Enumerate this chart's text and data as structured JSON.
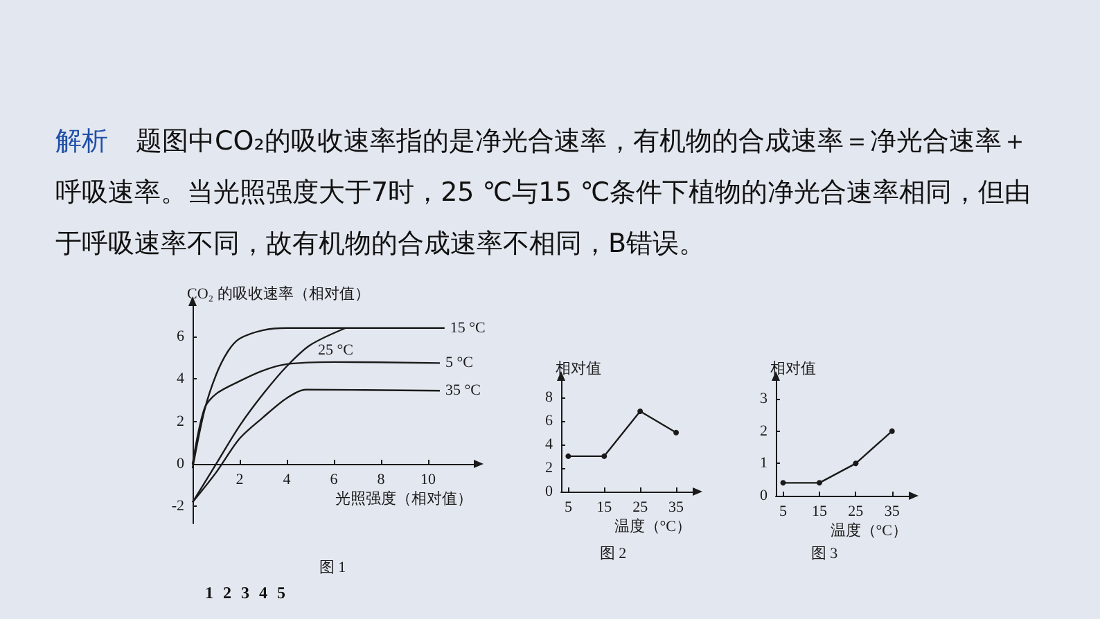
{
  "chart_data": [
    {
      "type": "line",
      "xlabel": "光照强度（相对值）",
      "ylabel": "CO₂ 的吸收速率（相对值）",
      "xlim": [
        0,
        12
      ],
      "xticks": [
        2,
        4,
        6,
        8,
        10
      ],
      "ylim": [
        -2.8,
        7.5
      ],
      "yticks": [
        -2,
        0,
        2,
        4,
        6
      ],
      "grid": false,
      "legend": false,
      "marker": "none",
      "annotations": [
        "解析",
        "题图中CO₂的吸收速率指的是净光合速率，有机物的合成速率＝净光合速率＋呼吸速率。当光照强度大于7时，25 ℃与15 ℃条件下植物的净光合速率相同，但由于呼吸速率不同，故有机物的合成速率不相同，B错误。",
        "图 1",
        "1 2 3 4 5"
      ],
      "series": [
        {
          "name": "15 °C",
          "color": "#1a1a1a",
          "x": [
            0,
            0.5,
            1,
            1.5,
            2,
            3,
            4,
            10.7
          ],
          "values": [
            -0.2,
            2.5,
            4.2,
            5.3,
            5.9,
            6.3,
            6.4,
            6.4
          ]
        },
        {
          "name": "25 °C",
          "color": "#1a1a1a",
          "x": [
            0,
            1,
            2,
            3,
            4,
            5,
            6.5
          ],
          "values": [
            -1.8,
            0,
            1.8,
            3.3,
            4.6,
            5.6,
            6.4
          ]
        },
        {
          "name": "5 °C",
          "color": "#1a1a1a",
          "x": [
            0,
            0.5,
            1,
            2,
            3,
            4,
            6,
            10.5
          ],
          "values": [
            0,
            2.6,
            3.3,
            3.9,
            4.4,
            4.7,
            4.8,
            4.75
          ]
        },
        {
          "name": "35 °C",
          "color": "#1a1a1a",
          "x": [
            0,
            1,
            2,
            3,
            4,
            4.8,
            10.5
          ],
          "values": [
            -1.8,
            -0.4,
            1.2,
            2.2,
            3.1,
            3.5,
            3.45
          ]
        }
      ]
    },
    {
      "type": "line",
      "xlabel": "温度（°C）",
      "ylabel": "相对值",
      "x": [
        5,
        15,
        25,
        35
      ],
      "xlim": [
        3,
        40
      ],
      "xticks": [
        5,
        15,
        25,
        35
      ],
      "ylim": [
        0,
        9.5
      ],
      "yticks": [
        0,
        2,
        4,
        6,
        8
      ],
      "grid": false,
      "legend": false,
      "marker": "circle",
      "annotations": [
        "图 2"
      ],
      "series": [
        {
          "color": "#1a1a1a",
          "values": [
            3,
            3,
            6.8,
            5
          ]
        }
      ]
    },
    {
      "type": "line",
      "xlabel": "温度（°C）",
      "ylabel": "相对值",
      "x": [
        5,
        15,
        25,
        35
      ],
      "xlim": [
        3,
        40
      ],
      "xticks": [
        5,
        15,
        25,
        35
      ],
      "ylim": [
        0,
        3.6
      ],
      "yticks": [
        0,
        1,
        2,
        3
      ],
      "grid": false,
      "legend": false,
      "marker": "circle",
      "annotations": [
        "图 3"
      ],
      "series": [
        {
          "color": "#1a1a1a",
          "values": [
            0.4,
            0.4,
            1,
            2
          ]
        }
      ]
    }
  ]
}
